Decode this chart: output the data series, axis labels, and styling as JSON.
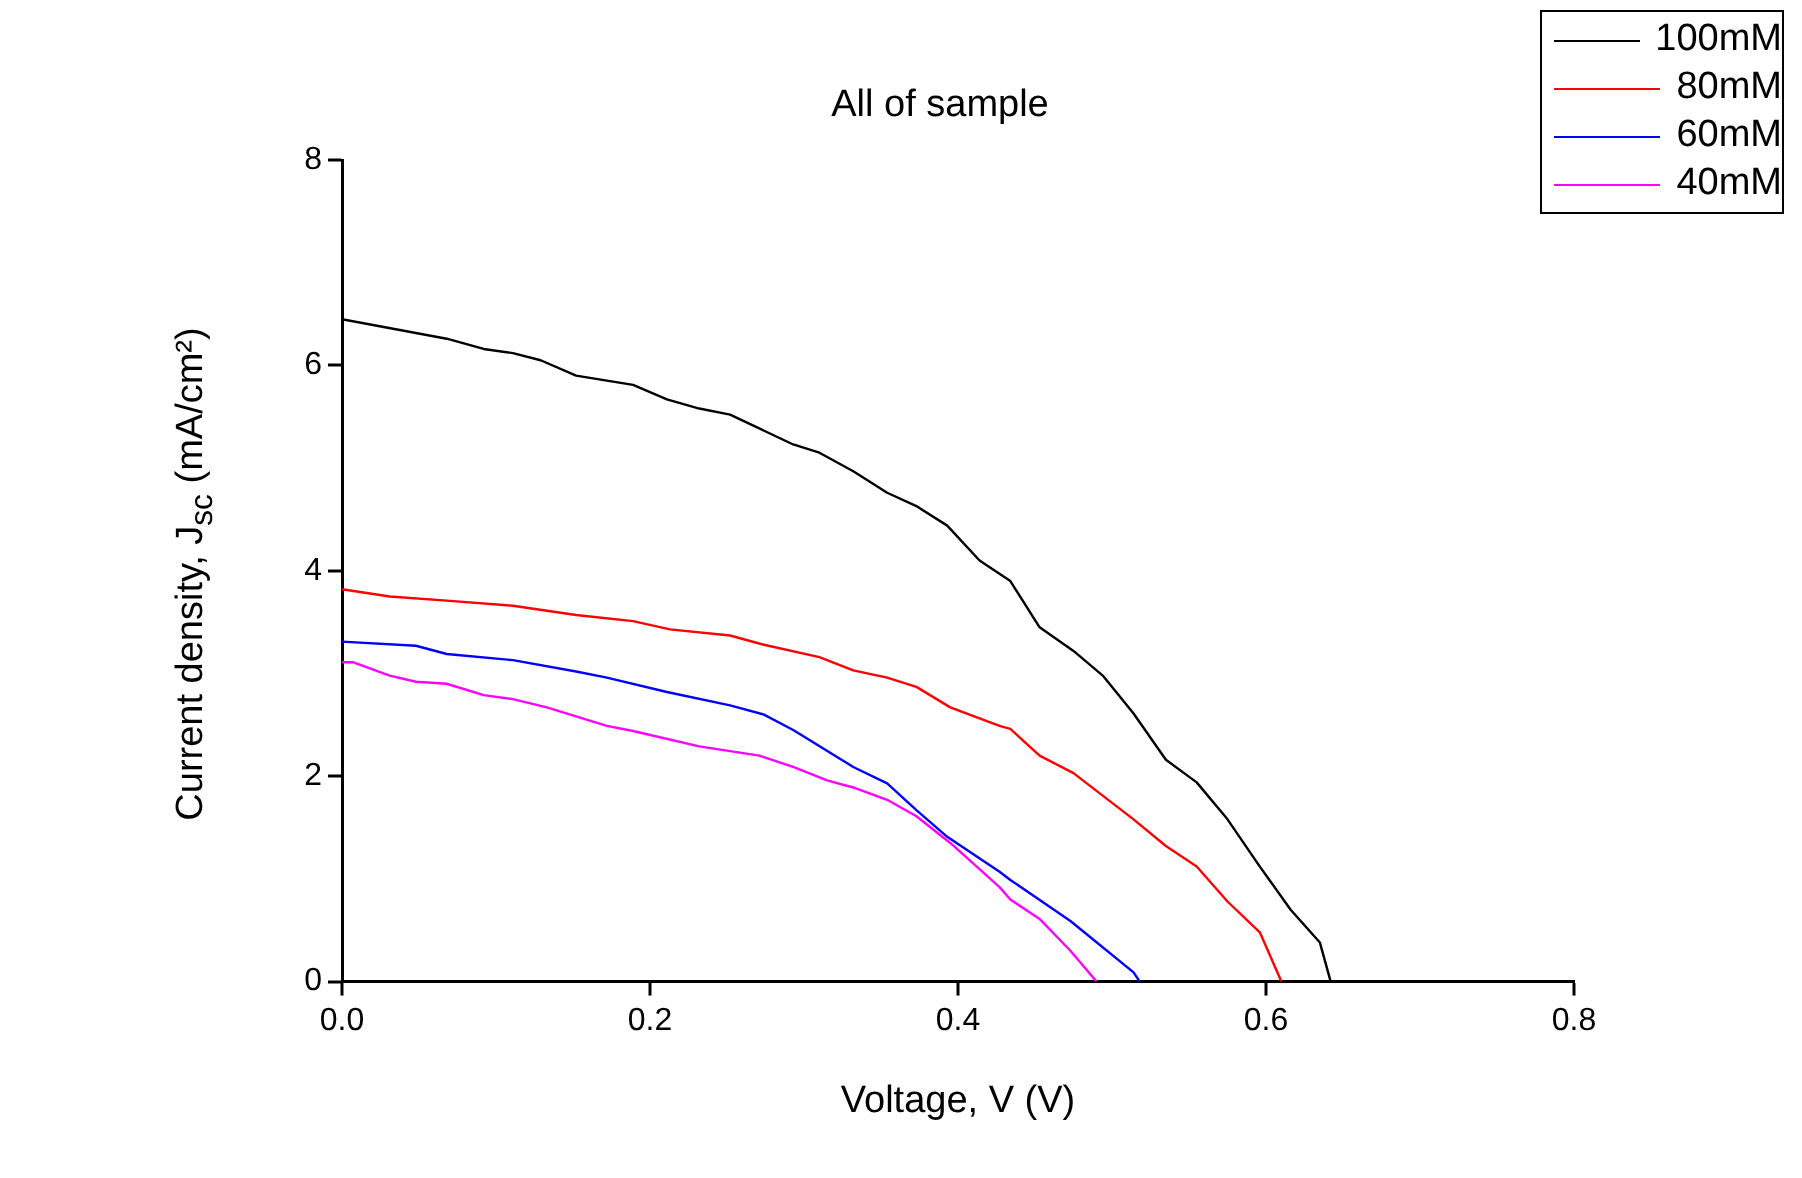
{
  "chart_data": {
    "type": "line",
    "title": "All of sample",
    "xlabel": "Voltage, V (V)",
    "ylabel": "Current density, J$_{sc}$ (mA/cm²)",
    "xlim": [
      0,
      0.8
    ],
    "xticks": [
      {
        "value": 0,
        "label": "0.0"
      },
      {
        "value": 0.2,
        "label": "0.2"
      },
      {
        "value": 0.4,
        "label": "0.4"
      },
      {
        "value": 0.6,
        "label": "0.6"
      },
      {
        "value": 0.8,
        "label": "0.8"
      }
    ],
    "ylim": [
      0,
      8
    ],
    "yticks": [
      0,
      2,
      4,
      6,
      8
    ],
    "grid": false,
    "legend": "top right",
    "marker": "none",
    "line_style": "solid",
    "series": [
      {
        "name": "100mM",
        "color": "#000000",
        "x": [
          0,
          0.068,
          0.092,
          0.111,
          0.129,
          0.152,
          0.189,
          0.211,
          0.232,
          0.252,
          0.293,
          0.31,
          0.332,
          0.354,
          0.373,
          0.393,
          0.414,
          0.434,
          0.453,
          0.475,
          0.494,
          0.514,
          0.535,
          0.555,
          0.575,
          0.596,
          0.616,
          0.635,
          0.642
        ],
        "values": [
          6.45,
          6.26,
          6.16,
          6.12,
          6.05,
          5.9,
          5.81,
          5.67,
          5.58,
          5.52,
          5.23,
          5.15,
          4.97,
          4.76,
          4.63,
          4.44,
          4.1,
          3.9,
          3.45,
          3.22,
          2.98,
          2.61,
          2.16,
          1.94,
          1.58,
          1.12,
          0.7,
          0.38,
          0
        ]
      },
      {
        "name": "80mM",
        "color": "#ff0000",
        "x": [
          0,
          0.031,
          0.068,
          0.111,
          0.152,
          0.189,
          0.213,
          0.252,
          0.274,
          0.31,
          0.332,
          0.354,
          0.373,
          0.395,
          0.427,
          0.434,
          0.453,
          0.475,
          0.514,
          0.535,
          0.555,
          0.575,
          0.596,
          0.61
        ],
        "values": [
          3.82,
          3.75,
          3.71,
          3.66,
          3.57,
          3.51,
          3.43,
          3.37,
          3.28,
          3.16,
          3.03,
          2.96,
          2.87,
          2.67,
          2.49,
          2.46,
          2.2,
          2.03,
          1.58,
          1.32,
          1.12,
          0.78,
          0.48,
          0
        ]
      },
      {
        "name": "60mM",
        "color": "#0000ff",
        "x": [
          0,
          0.048,
          0.068,
          0.111,
          0.152,
          0.172,
          0.211,
          0.252,
          0.274,
          0.293,
          0.332,
          0.354,
          0.373,
          0.393,
          0.427,
          0.434,
          0.473,
          0.514,
          0.518
        ],
        "values": [
          3.31,
          3.27,
          3.19,
          3.13,
          3.02,
          2.96,
          2.82,
          2.69,
          2.6,
          2.45,
          2.09,
          1.93,
          1.67,
          1.41,
          1.07,
          0.99,
          0.59,
          0.09,
          0
        ]
      },
      {
        "name": "40mM",
        "color": "#ff00ff",
        "x": [
          0,
          0.007,
          0.031,
          0.048,
          0.068,
          0.092,
          0.111,
          0.133,
          0.172,
          0.189,
          0.232,
          0.271,
          0.293,
          0.315,
          0.332,
          0.354,
          0.373,
          0.395,
          0.427,
          0.434,
          0.453,
          0.473,
          0.49
        ],
        "values": [
          3.11,
          3.11,
          2.98,
          2.92,
          2.9,
          2.79,
          2.75,
          2.67,
          2.49,
          2.44,
          2.29,
          2.2,
          2.09,
          1.96,
          1.89,
          1.77,
          1.61,
          1.35,
          0.92,
          0.8,
          0.61,
          0.3,
          0
        ]
      }
    ]
  }
}
